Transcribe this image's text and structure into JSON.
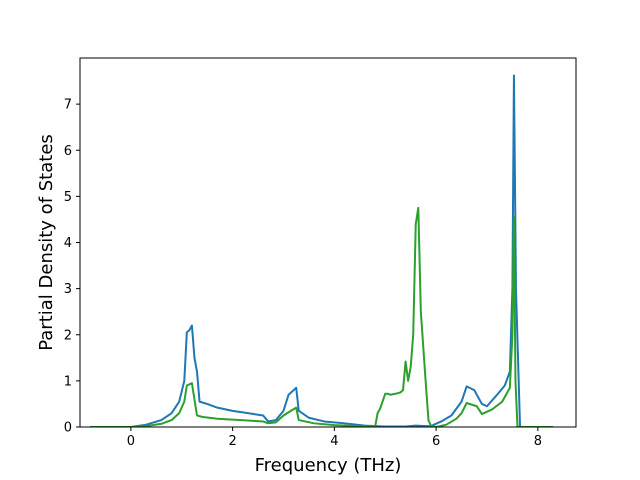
{
  "chart_data": {
    "type": "line",
    "title": "",
    "xlabel": "Frequency (THz)",
    "ylabel": "Partial Density of States",
    "xlim": [
      -1.0,
      8.75
    ],
    "ylim": [
      0,
      8.0
    ],
    "xticks": [
      0,
      2,
      4,
      6,
      8
    ],
    "xtick_labels": [
      "0",
      "2",
      "4",
      "6",
      "8"
    ],
    "yticks": [
      0,
      1,
      2,
      3,
      4,
      5,
      6,
      7
    ],
    "ytick_labels": [
      "0",
      "1",
      "2",
      "3",
      "4",
      "5",
      "6",
      "7"
    ],
    "grid": false,
    "legend": "none",
    "series": [
      {
        "color": "#1f77b4",
        "x": [
          -0.8,
          0.0,
          0.3,
          0.6,
          0.8,
          0.95,
          1.05,
          1.1,
          1.15,
          1.2,
          1.25,
          1.3,
          1.35,
          1.5,
          1.7,
          2.0,
          2.3,
          2.6,
          2.7,
          2.85,
          3.0,
          3.1,
          3.2,
          3.25,
          3.3,
          3.5,
          3.8,
          4.2,
          4.6,
          5.0,
          5.4,
          5.6,
          5.8,
          5.9,
          6.1,
          6.3,
          6.5,
          6.6,
          6.75,
          6.9,
          7.0,
          7.2,
          7.35,
          7.45,
          7.5,
          7.53,
          7.57,
          7.65,
          8.3
        ],
        "y": [
          0.0,
          0.0,
          0.05,
          0.15,
          0.3,
          0.55,
          1.0,
          2.05,
          2.1,
          2.2,
          1.5,
          1.2,
          0.55,
          0.5,
          0.42,
          0.35,
          0.3,
          0.25,
          0.12,
          0.15,
          0.35,
          0.7,
          0.8,
          0.85,
          0.35,
          0.2,
          0.12,
          0.08,
          0.03,
          0.01,
          0.01,
          0.03,
          0.02,
          0.02,
          0.12,
          0.25,
          0.55,
          0.88,
          0.8,
          0.5,
          0.45,
          0.7,
          0.9,
          1.2,
          3.0,
          7.62,
          3.0,
          0.0,
          0.0
        ]
      },
      {
        "color": "#2ca02c",
        "x": [
          -0.8,
          0.0,
          0.3,
          0.6,
          0.8,
          0.95,
          1.05,
          1.1,
          1.2,
          1.3,
          1.4,
          1.7,
          2.0,
          2.3,
          2.6,
          2.7,
          2.85,
          3.0,
          3.1,
          3.25,
          3.3,
          3.6,
          4.0,
          4.5,
          4.8,
          4.85,
          4.9,
          5.0,
          5.05,
          5.1,
          5.2,
          5.3,
          5.35,
          5.4,
          5.45,
          5.5,
          5.55,
          5.6,
          5.65,
          5.7,
          5.8,
          5.85,
          5.9,
          6.0,
          6.2,
          6.4,
          6.5,
          6.6,
          6.8,
          6.9,
          7.1,
          7.3,
          7.45,
          7.5,
          7.53,
          7.56,
          7.6,
          8.3
        ],
        "y": [
          0.0,
          0.0,
          0.02,
          0.07,
          0.15,
          0.3,
          0.55,
          0.9,
          0.95,
          0.25,
          0.22,
          0.18,
          0.16,
          0.14,
          0.12,
          0.08,
          0.1,
          0.25,
          0.32,
          0.42,
          0.15,
          0.08,
          0.04,
          0.02,
          0.0,
          0.3,
          0.4,
          0.72,
          0.72,
          0.7,
          0.72,
          0.75,
          0.8,
          1.42,
          1.0,
          1.3,
          2.0,
          4.4,
          4.75,
          2.5,
          0.9,
          0.15,
          0.02,
          0.0,
          0.05,
          0.18,
          0.3,
          0.52,
          0.45,
          0.28,
          0.38,
          0.55,
          0.85,
          2.0,
          4.55,
          1.0,
          0.0,
          0.0
        ]
      }
    ]
  }
}
